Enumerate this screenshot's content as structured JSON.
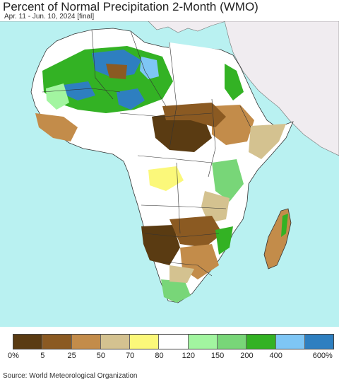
{
  "title": "Percent of Normal Precipitation 2-Month (WMO)",
  "subtitle": "Apr. 11 - Jun. 10, 2024 [final]",
  "source": "Source: World Meteorological Organization",
  "colors": {
    "ocean": "#b9f1f1",
    "no_data_land": "#f0ecf0",
    "border": "#333333"
  },
  "legend": {
    "swatches": [
      "#5a3b12",
      "#8b5a22",
      "#c38c4a",
      "#d4c290",
      "#fbf87a",
      "#ffffff",
      "#a2f5a0",
      "#78d678",
      "#33b224",
      "#7ec6f5",
      "#2e7fc0"
    ],
    "labels": [
      "0%",
      "5",
      "25",
      "50",
      "70",
      "80",
      "120",
      "150",
      "200",
      "400",
      "600%"
    ]
  }
}
